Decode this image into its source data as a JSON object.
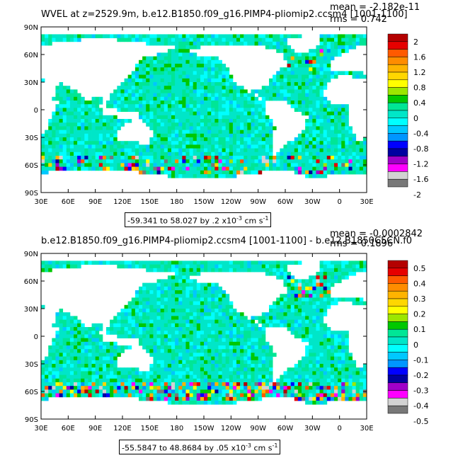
{
  "panels": [
    {
      "title": "WVEL at z=2529.9m, b.e12.B1850.f09_g16.PIMP4-pliomip2.ccsm4 [1001-1100]",
      "mean": "mean = -2.182e-11",
      "rms": "rms = 0.742",
      "range": "-59.341 to 58.027 by .2 x10",
      "range_exp": "-3",
      "range_units": "cm s",
      "range_units_exp": "-1",
      "colorbar": {
        "labels": [
          "2",
          "1.6",
          "1.2",
          "0.8",
          "0.4",
          "0",
          "-0.4",
          "-0.8",
          "-1.2",
          "-1.6",
          "-2"
        ],
        "colors": [
          "#b40000",
          "#e60000",
          "#ff5a00",
          "#ff8c00",
          "#ffb400",
          "#ffd700",
          "#ffff00",
          "#9be600",
          "#00c800",
          "#00e696",
          "#00e6c8",
          "#00ffff",
          "#00c8ff",
          "#0096ff",
          "#0000ff",
          "#0000a0",
          "#a000c8",
          "#ff00ff",
          "#d2d2d2",
          "#787878"
        ]
      }
    },
    {
      "title": "b.e12.B1850.f09_g16.PIMP4-pliomip2.ccsm4 [1001-1100] - b.e12.B1850C5CN.f0",
      "mean": "mean = -0.0002842",
      "rms": "rms = 0.1896",
      "range": "-55.5847 to 48.8684 by .05 x10",
      "range_exp": "-3",
      "range_units": "cm s",
      "range_units_exp": "-1",
      "colorbar": {
        "labels": [
          "0.5",
          "0.4",
          "0.3",
          "0.2",
          "0.1",
          "0",
          "-0.1",
          "-0.2",
          "-0.3",
          "-0.4",
          "-0.5"
        ],
        "colors": [
          "#b40000",
          "#e60000",
          "#ff5a00",
          "#ff8c00",
          "#ffb400",
          "#ffd700",
          "#ffff00",
          "#9be600",
          "#00c800",
          "#00e696",
          "#00e6c8",
          "#00ffff",
          "#00c8ff",
          "#0096ff",
          "#0000ff",
          "#0000a0",
          "#a000c8",
          "#ff00ff",
          "#d2d2d2",
          "#787878"
        ]
      }
    }
  ],
  "axes": {
    "lat_labels": [
      "90N",
      "60N",
      "30N",
      "0",
      "30S",
      "60S",
      "90S"
    ],
    "lon_labels": [
      "30E",
      "60E",
      "90E",
      "120E",
      "150E",
      "180",
      "150W",
      "120W",
      "90W",
      "60W",
      "30W",
      "0",
      "30E"
    ]
  }
}
